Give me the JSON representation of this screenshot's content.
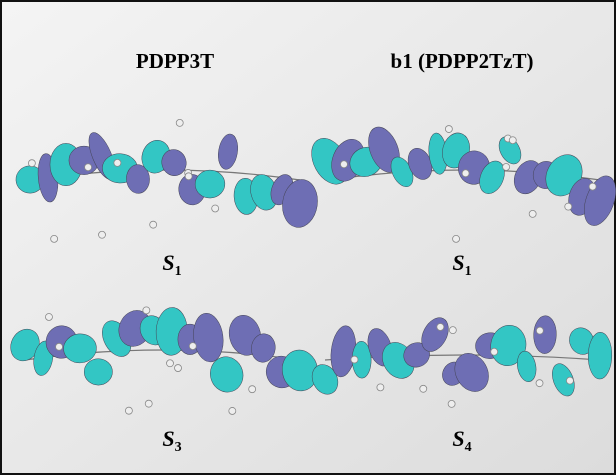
{
  "panels": [
    {
      "title": "PDPP3T",
      "states": [
        {
          "letter": "S",
          "sub": "1"
        },
        {
          "letter": "S",
          "sub": "3"
        }
      ]
    },
    {
      "title": "b1 (PDPP2TzT)",
      "states": [
        {
          "letter": "S",
          "sub": "1"
        },
        {
          "letter": "S",
          "sub": "4"
        }
      ]
    }
  ]
}
